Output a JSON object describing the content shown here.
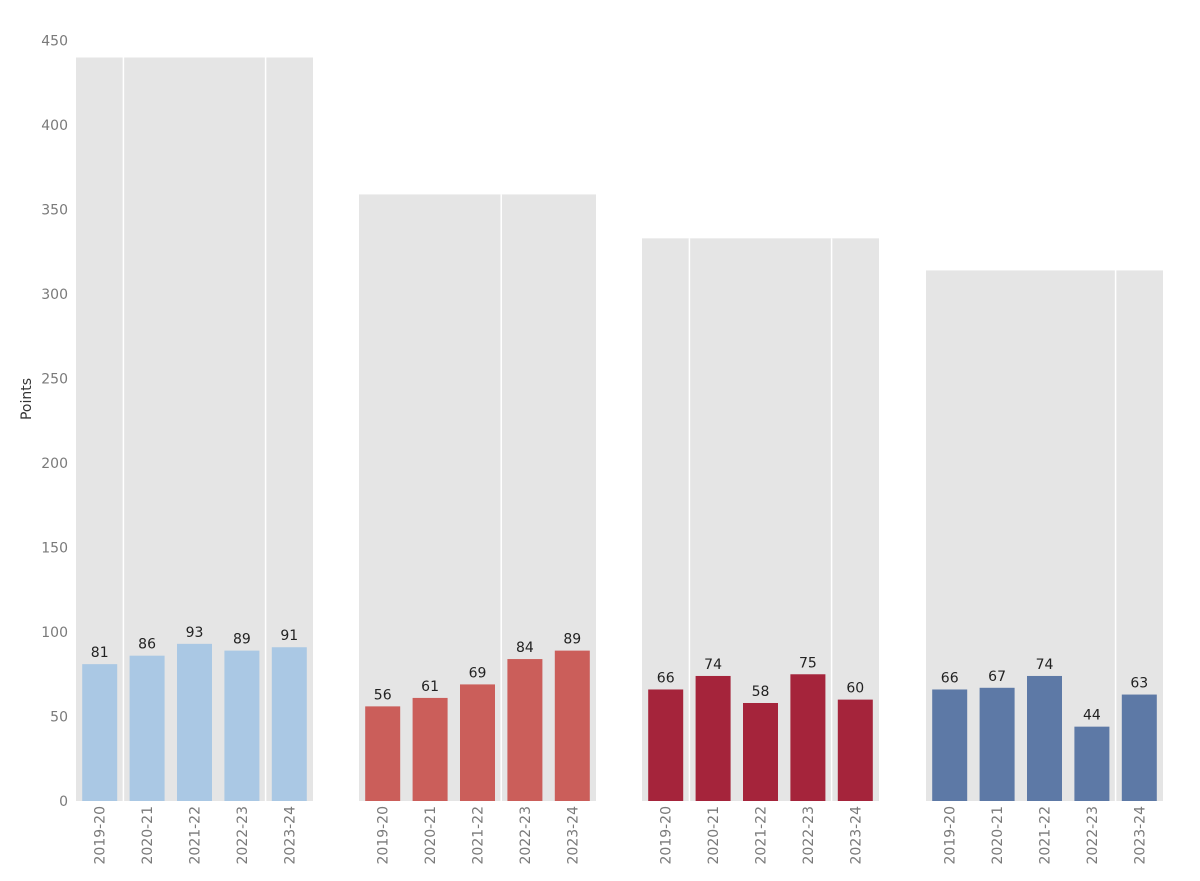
{
  "chart_data": {
    "type": "bar",
    "title": "",
    "xlabel": "",
    "ylabel": "Points",
    "ylim": [
      0,
      450
    ],
    "yticks": [
      0,
      50,
      100,
      150,
      200,
      250,
      300,
      350,
      400,
      450
    ],
    "grid": false,
    "categories": [
      "2019-20",
      "2020-21",
      "2021-22",
      "2022-23",
      "2023-24"
    ],
    "panel_background_color": "#e5e5e5",
    "panels": [
      {
        "color": "#aac8e4",
        "background_height": 440,
        "background_dividers_after": [
          "2019-20",
          "2022-23"
        ],
        "values": [
          81,
          86,
          93,
          89,
          91
        ]
      },
      {
        "color": "#cb5e5a",
        "background_height": 359,
        "background_dividers_after": [
          "2021-22"
        ],
        "values": [
          56,
          61,
          69,
          84,
          89
        ]
      },
      {
        "color": "#a5243b",
        "background_height": 333,
        "background_dividers_after": [
          "2019-20",
          "2022-23"
        ],
        "values": [
          66,
          74,
          58,
          75,
          60
        ]
      },
      {
        "color": "#5d79a6",
        "background_height": 314,
        "background_dividers_after": [
          "2022-23"
        ],
        "values": [
          66,
          67,
          74,
          44,
          63
        ]
      }
    ]
  }
}
